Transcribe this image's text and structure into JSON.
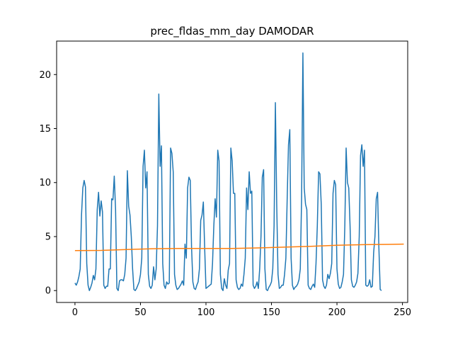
{
  "chart_data": {
    "type": "line",
    "title": "prec_fldas_mm_day DAMODAR",
    "xlabel": "",
    "ylabel": "",
    "xlim": [
      -14,
      254
    ],
    "ylim": [
      -1.1,
      23.1
    ],
    "x_ticks": [
      0,
      50,
      100,
      150,
      200,
      250
    ],
    "y_ticks": [
      0,
      5,
      10,
      15,
      20
    ],
    "grid": false,
    "legend": "none",
    "series": [
      {
        "color": "#1f77b4",
        "x_start": 0,
        "values": [
          0.7,
          0.5,
          0.8,
          1.3,
          2.0,
          7.0,
          9.5,
          10.2,
          9.6,
          2.5,
          0.5,
          0.0,
          0.3,
          0.7,
          1.4,
          1.0,
          2.0,
          7.5,
          9.1,
          6.9,
          8.3,
          7.3,
          0.5,
          0.2,
          0.4,
          0.4,
          2.0,
          2.0,
          8.5,
          8.4,
          10.6,
          7.5,
          0.2,
          0.0,
          0.9,
          1.0,
          1.0,
          0.9,
          1.5,
          3.0,
          11.1,
          7.8,
          7.0,
          5.0,
          2.0,
          0.1,
          0.0,
          0.2,
          0.5,
          0.8,
          1.5,
          3.0,
          11.5,
          13.0,
          9.5,
          11.0,
          1.5,
          0.4,
          0.2,
          0.5,
          2.2,
          1.0,
          2.0,
          6.0,
          18.2,
          11.5,
          13.4,
          2.5,
          0.5,
          0.2,
          0.8,
          0.6,
          0.7,
          13.2,
          12.7,
          11.0,
          1.5,
          0.5,
          0.1,
          0.2,
          0.4,
          0.6,
          0.9,
          0.5,
          4.3,
          3.0,
          9.5,
          10.5,
          10.2,
          4.0,
          0.8,
          0.2,
          0.1,
          0.5,
          0.8,
          2.0,
          6.5,
          7.0,
          8.2,
          4.0,
          0.2,
          0.3,
          0.4,
          0.5,
          0.6,
          2.5,
          6.0,
          8.5,
          6.8,
          13.0,
          12.0,
          1.5,
          0.2,
          0.0,
          1.1,
          0.5,
          0.2,
          1.9,
          2.5,
          13.2,
          12.0,
          9.0,
          9.0,
          1.0,
          0.3,
          0.1,
          0.2,
          0.6,
          0.4,
          1.5,
          3.0,
          9.5,
          7.5,
          11.0,
          9.0,
          9.2,
          0.5,
          0.2,
          0.4,
          0.8,
          0.2,
          2.0,
          5.0,
          10.5,
          11.2,
          2.0,
          0.1,
          0.0,
          0.3,
          0.5,
          0.8,
          2.0,
          6.0,
          17.4,
          8.0,
          1.5,
          0.2,
          0.3,
          0.5,
          0.5,
          1.5,
          3.0,
          8.5,
          13.5,
          14.9,
          3.0,
          0.5,
          0.1,
          0.3,
          0.4,
          0.6,
          1.0,
          2.0,
          8.5,
          22.0,
          9.5,
          8.0,
          7.5,
          0.5,
          0.2,
          0.1,
          0.4,
          0.6,
          0.3,
          2.5,
          6.0,
          11.0,
          10.8,
          8.0,
          1.0,
          0.4,
          0.2,
          0.5,
          1.5,
          1.1,
          1.6,
          2.5,
          9.0,
          10.2,
          9.8,
          2.0,
          0.6,
          0.2,
          0.3,
          0.8,
          1.5,
          6.0,
          13.2,
          10.0,
          9.5,
          6.0,
          1.0,
          0.4,
          0.3,
          0.5,
          0.8,
          1.6,
          5.0,
          12.5,
          13.5,
          11.5,
          13.0,
          0.5,
          0.4,
          0.5,
          1.0,
          0.3,
          0.4,
          3.5,
          5.0,
          8.5,
          9.1,
          4.0,
          0.1,
          0.0
        ]
      },
      {
        "color": "#ff7f0e",
        "x": [
          0,
          20,
          40,
          60,
          80,
          100,
          120,
          140,
          160,
          180,
          200,
          220,
          240,
          251
        ],
        "values": [
          3.7,
          3.72,
          3.8,
          3.88,
          3.9,
          3.9,
          3.9,
          3.95,
          4.02,
          4.1,
          4.2,
          4.25,
          4.28,
          4.3
        ]
      }
    ]
  }
}
